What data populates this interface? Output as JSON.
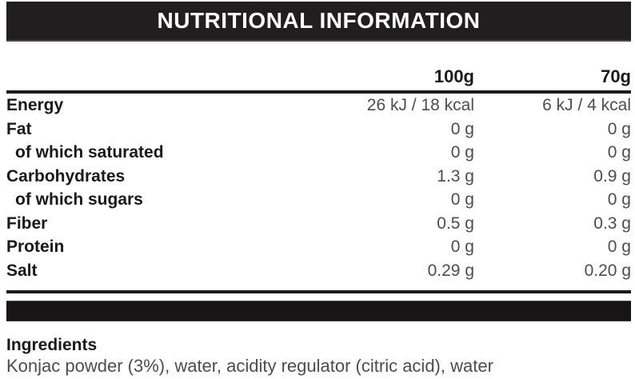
{
  "header": {
    "title": "NUTRITIONAL INFORMATION"
  },
  "table": {
    "columns": {
      "label": "",
      "per100g": "100g",
      "per70g": "70g"
    },
    "rows": [
      {
        "label": "Energy",
        "indent": false,
        "per100g": "26 kJ / 18 kcal",
        "per70g": "6 kJ / 4 kcal"
      },
      {
        "label": "Fat",
        "indent": false,
        "per100g": "0 g",
        "per70g": "0 g"
      },
      {
        "label": "of which saturated",
        "indent": true,
        "per100g": "0 g",
        "per70g": "0 g"
      },
      {
        "label": "Carbohydrates",
        "indent": false,
        "per100g": "1.3 g",
        "per70g": "0.9 g"
      },
      {
        "label": "of which sugars",
        "indent": true,
        "per100g": "0 g",
        "per70g": "0 g"
      },
      {
        "label": "Fiber",
        "indent": false,
        "per100g": "0.5 g",
        "per70g": "0.3 g"
      },
      {
        "label": "Protein",
        "indent": false,
        "per100g": "0 g",
        "per70g": "0 g"
      },
      {
        "label": "Salt",
        "indent": false,
        "per100g": "0.29 g",
        "per70g": "0.20 g"
      }
    ]
  },
  "ingredients": {
    "heading": "Ingredients",
    "text": "Konjac powder (3%), water, acidity regulator (citric acid), water"
  },
  "colors": {
    "header_bar": "#201e1f",
    "bottom_bar": "#171516",
    "rule": "#1b1919",
    "label_text": "#191919",
    "value_text": "#4e4c4d",
    "title_text": "#ffffff"
  }
}
